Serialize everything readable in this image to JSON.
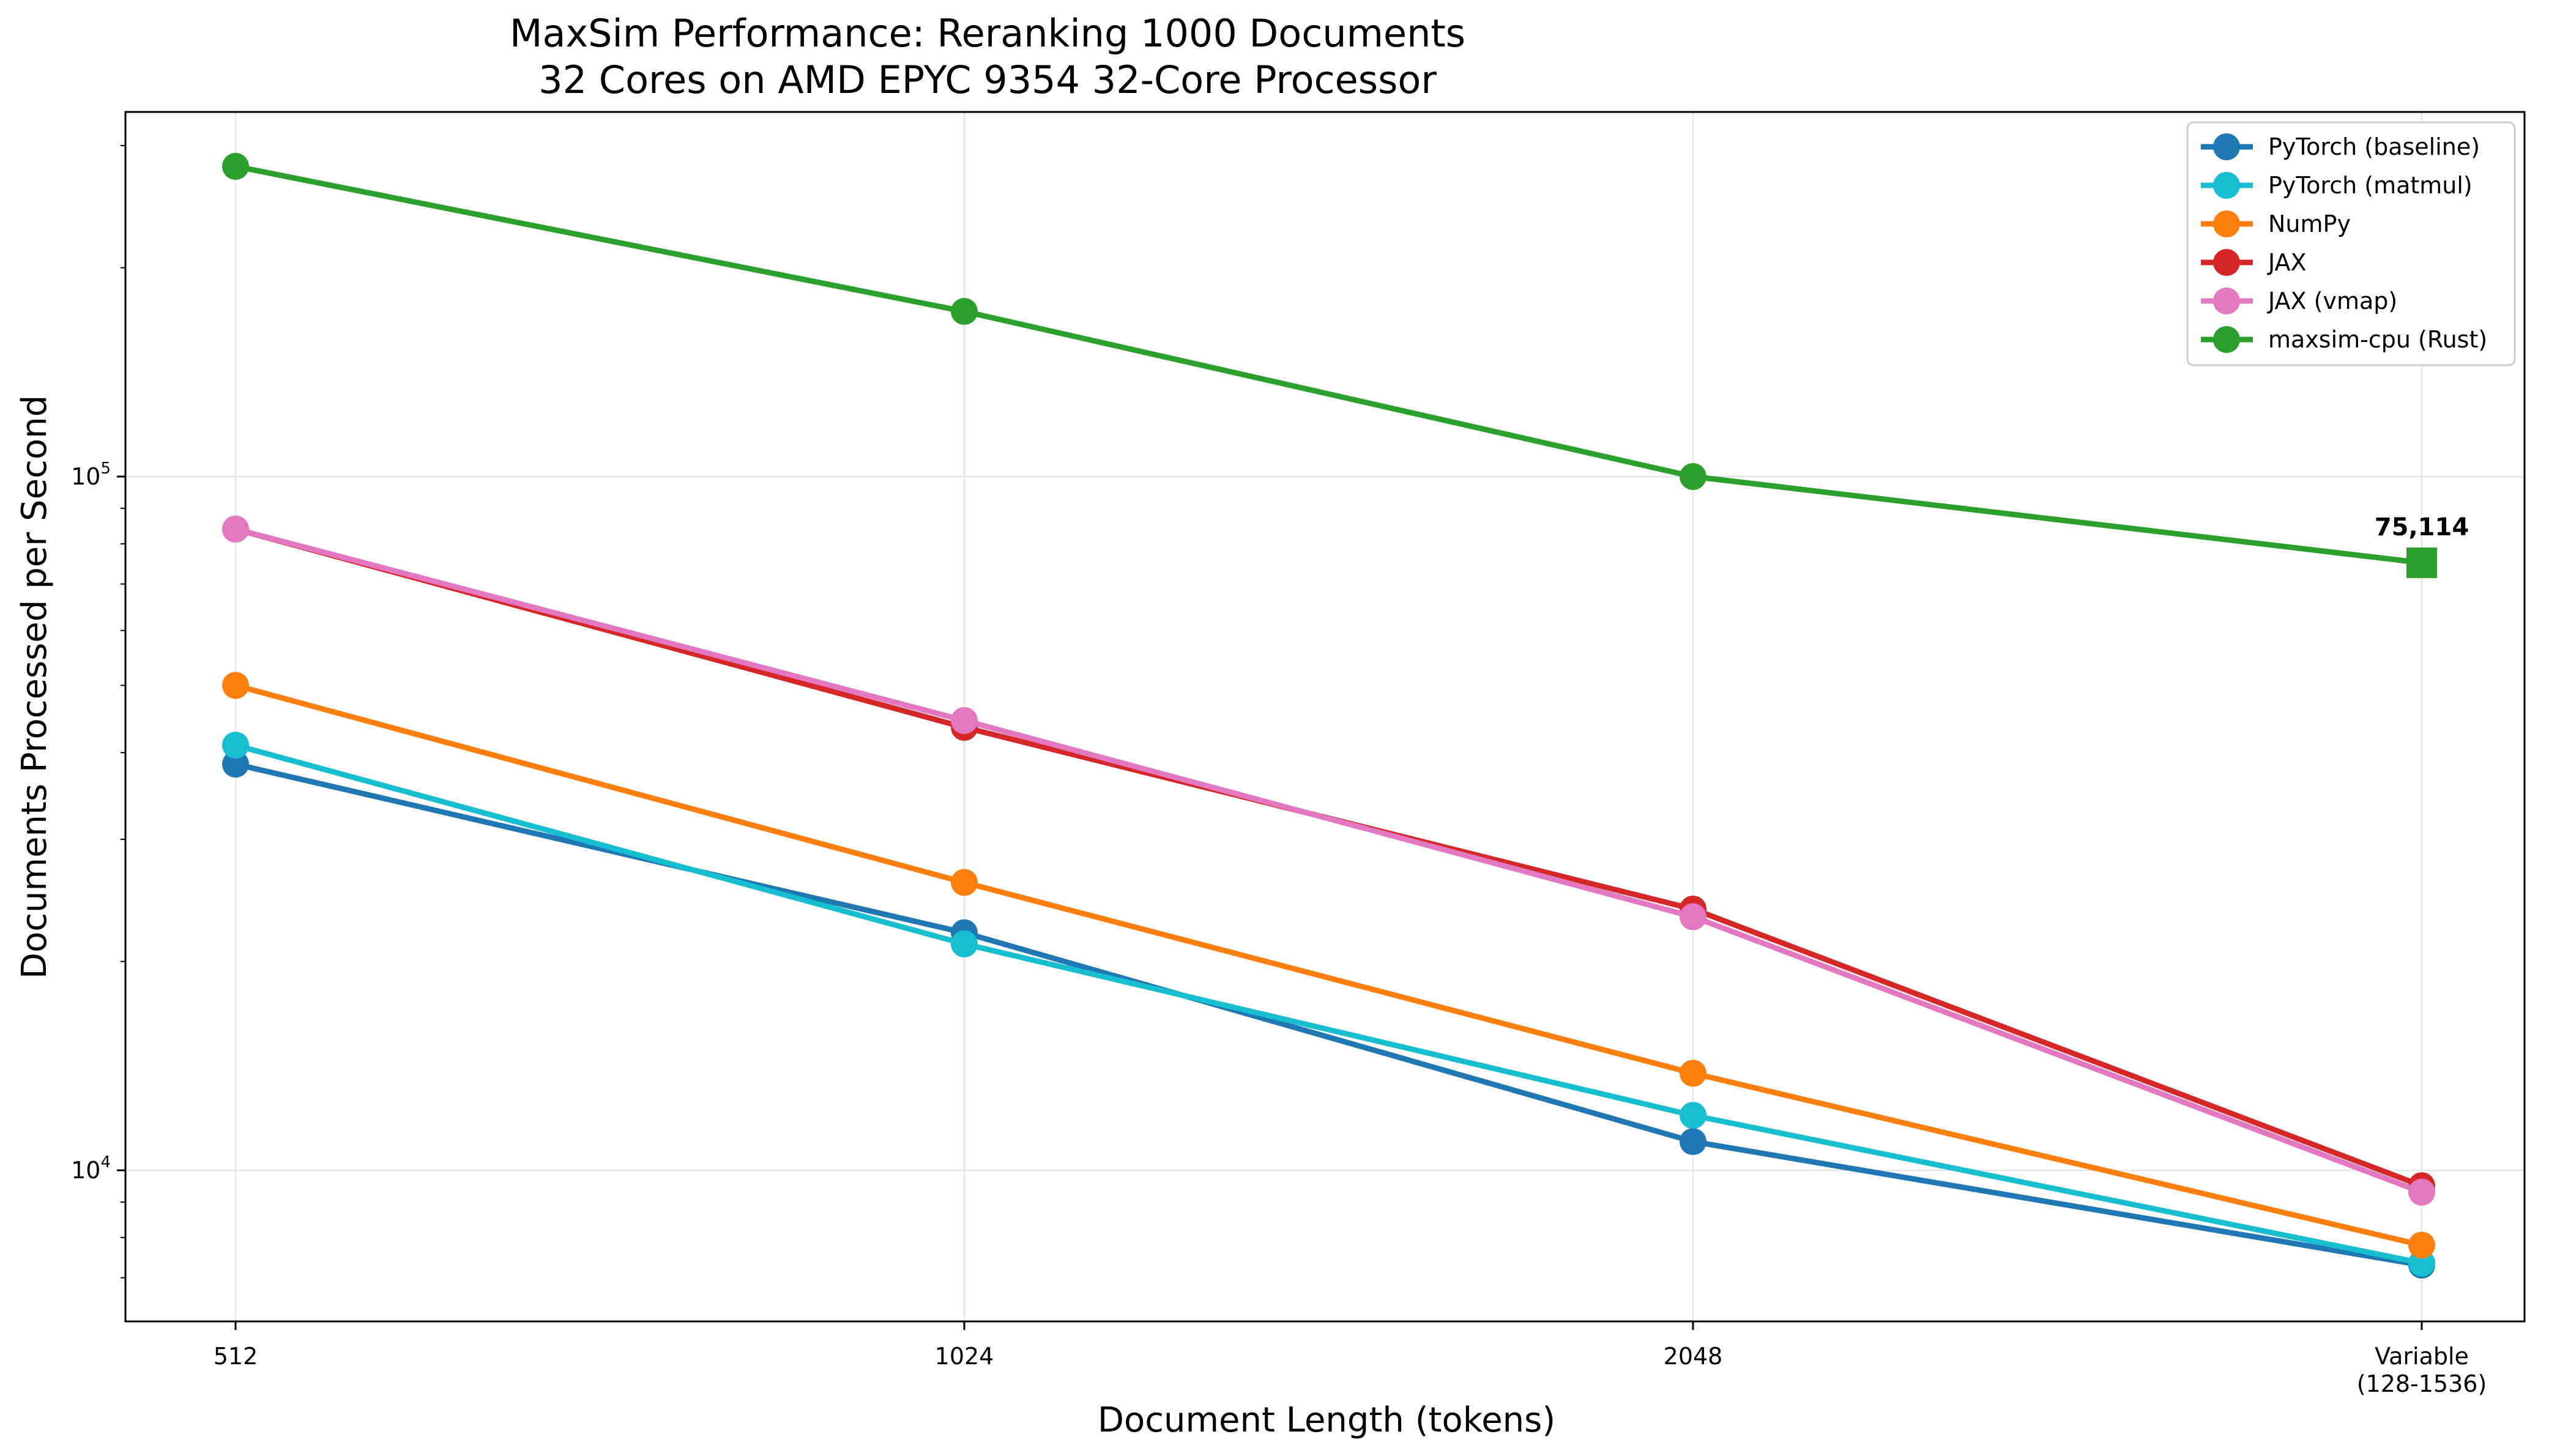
{
  "chart_data": {
    "type": "line",
    "title": "MaxSim Performance: Reranking 1000 Documents",
    "subtitle": "32 Cores on AMD EPYC 9354 32-Core Processor",
    "xlabel": "Document Length (tokens)",
    "ylabel": "Documents Processed per Second",
    "y_scale": "log",
    "ylim": [
      6500,
      300000
    ],
    "grid": true,
    "legend_position": "top-right",
    "categories": [
      "512",
      "1024",
      "2048",
      "Variable\n(128-1536)"
    ],
    "y_ticks": [
      {
        "value": 10000,
        "base": "10",
        "exp": "4"
      },
      {
        "value": 100000,
        "base": "10",
        "exp": "5"
      }
    ],
    "series": [
      {
        "name": "PyTorch (baseline)",
        "color": "#1f77b4",
        "values": [
          38500,
          22000,
          11000,
          7300
        ]
      },
      {
        "name": "PyTorch (matmul)",
        "color": "#17becf",
        "values": [
          41000,
          21200,
          12000,
          7350
        ]
      },
      {
        "name": "NumPy",
        "color": "#ff7f0e",
        "values": [
          50000,
          26000,
          13800,
          7800
        ]
      },
      {
        "name": "JAX",
        "color": "#d62728",
        "values": [
          84000,
          43500,
          23800,
          9500
        ]
      },
      {
        "name": "JAX (vmap)",
        "color": "#e377c2",
        "values": [
          84000,
          44500,
          23200,
          9300
        ]
      },
      {
        "name": "maxsim-cpu (Rust)",
        "color": "#2ca02c",
        "values": [
          280000,
          173000,
          100000,
          75114
        ]
      }
    ],
    "annotation": {
      "text": "75,114",
      "color": "#006400",
      "series": "maxsim-cpu (Rust)",
      "index": 3,
      "marker": "square"
    }
  }
}
